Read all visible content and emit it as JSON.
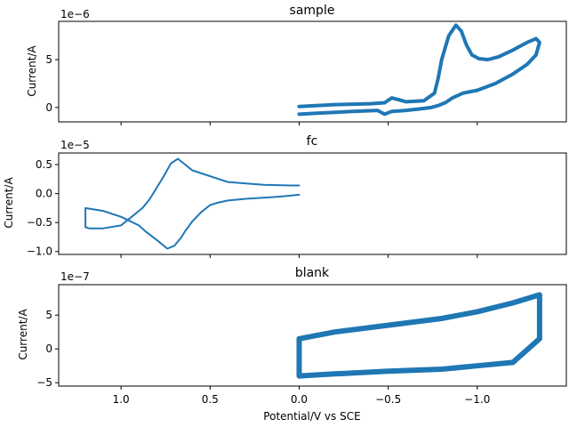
{
  "figure": {
    "shared_xlabel": "Potential/V vs SCE",
    "line_color": "#1f77b4",
    "x_tick_labels": [
      "1.0",
      "0.5",
      "0.0",
      "−0.5",
      "−1.0"
    ]
  },
  "chart_data": [
    {
      "type": "line",
      "title": "sample",
      "xlabel": "",
      "ylabel": "Current/A",
      "offset_text": "1e−6",
      "x_inverted": true,
      "xlim": [
        1.35,
        -1.5
      ],
      "ylim": [
        -1.5,
        9.0
      ],
      "y_ticks": [
        0,
        5
      ],
      "y_tick_labels": [
        "0",
        "5"
      ],
      "x_ticks": [
        1.0,
        0.5,
        0.0,
        -0.5,
        -1.0
      ],
      "x_tick_labels_shown": false,
      "scale": 1e-06,
      "x": [
        0.0,
        -0.2,
        -0.4,
        -0.48,
        -0.52,
        -0.56,
        -0.6,
        -0.7,
        -0.76,
        -0.78,
        -0.8,
        -0.84,
        -0.88,
        -0.91,
        -0.94,
        -0.97,
        -1.01,
        -1.06,
        -1.12,
        -1.2,
        -1.28,
        -1.33,
        -1.35,
        -1.33,
        -1.28,
        -1.2,
        -1.1,
        -1.0,
        -0.92,
        -0.86,
        -0.82,
        -0.78,
        -0.74,
        -0.7,
        -0.6,
        -0.52,
        -0.48,
        -0.44,
        -0.3,
        -0.1,
        0.0
      ],
      "y": [
        0.1,
        0.3,
        0.4,
        0.5,
        1.0,
        0.8,
        0.6,
        0.7,
        1.5,
        3.0,
        5.0,
        7.5,
        8.6,
        8.0,
        6.5,
        5.5,
        5.1,
        5.0,
        5.3,
        6.0,
        6.8,
        7.2,
        6.8,
        5.5,
        4.5,
        3.5,
        2.5,
        1.8,
        1.5,
        1.0,
        0.5,
        0.2,
        0.0,
        -0.1,
        -0.3,
        -0.4,
        -0.7,
        -0.3,
        -0.4,
        -0.6,
        -0.7
      ]
    },
    {
      "type": "line",
      "title": "fc",
      "xlabel": "",
      "ylabel": "Current/A",
      "offset_text": "1e−5",
      "x_inverted": true,
      "xlim": [
        1.35,
        -1.5
      ],
      "ylim": [
        -1.05,
        0.7
      ],
      "y_ticks": [
        0.5,
        0.0,
        -0.5,
        -1.0
      ],
      "y_tick_labels": [
        "0.5",
        "0.0",
        "−0.5",
        "−1.0"
      ],
      "x_ticks": [
        1.0,
        0.5,
        0.0,
        -0.5,
        -1.0
      ],
      "x_tick_labels_shown": false,
      "scale": 1e-05,
      "x": [
        0.0,
        0.1,
        0.2,
        0.3,
        0.4,
        0.46,
        0.5,
        0.55,
        0.6,
        0.64,
        0.66,
        0.7,
        0.74,
        0.8,
        0.86,
        0.9,
        1.0,
        1.1,
        1.2,
        1.2,
        1.18,
        1.1,
        1.0,
        0.94,
        0.88,
        0.84,
        0.8,
        0.76,
        0.72,
        0.68,
        0.6,
        0.4,
        0.2,
        0.05,
        0.0
      ],
      "y": [
        -0.02,
        -0.05,
        -0.07,
        -0.09,
        -0.12,
        -0.16,
        -0.2,
        -0.32,
        -0.48,
        -0.65,
        -0.75,
        -0.9,
        -0.95,
        -0.8,
        -0.66,
        -0.55,
        -0.4,
        -0.3,
        -0.25,
        -0.58,
        -0.6,
        -0.6,
        -0.55,
        -0.4,
        -0.25,
        -0.1,
        0.1,
        0.3,
        0.52,
        0.6,
        0.4,
        0.2,
        0.15,
        0.14,
        0.14
      ]
    },
    {
      "type": "line",
      "title": "blank",
      "xlabel": "Potential/V vs SCE",
      "ylabel": "Current/A",
      "offset_text": "1e−7",
      "x_inverted": true,
      "xlim": [
        1.35,
        -1.5
      ],
      "ylim": [
        -5.5,
        9.5
      ],
      "y_ticks": [
        5,
        0,
        -5
      ],
      "y_tick_labels": [
        "5",
        "0",
        "−5"
      ],
      "x_ticks": [
        1.0,
        0.5,
        0.0,
        -0.5,
        -1.0
      ],
      "x_tick_labels_shown": true,
      "scale": 1e-07,
      "x": [
        0.0,
        -0.2,
        -0.5,
        -0.8,
        -1.0,
        -1.2,
        -1.35,
        -1.35,
        -1.2,
        -1.0,
        -0.8,
        -0.5,
        -0.2,
        0.0,
        0.0
      ],
      "y": [
        1.5,
        2.5,
        3.5,
        4.5,
        5.5,
        6.8,
        8.0,
        1.5,
        -2.0,
        -2.5,
        -3.0,
        -3.3,
        -3.7,
        -4.0,
        1.5
      ]
    }
  ]
}
